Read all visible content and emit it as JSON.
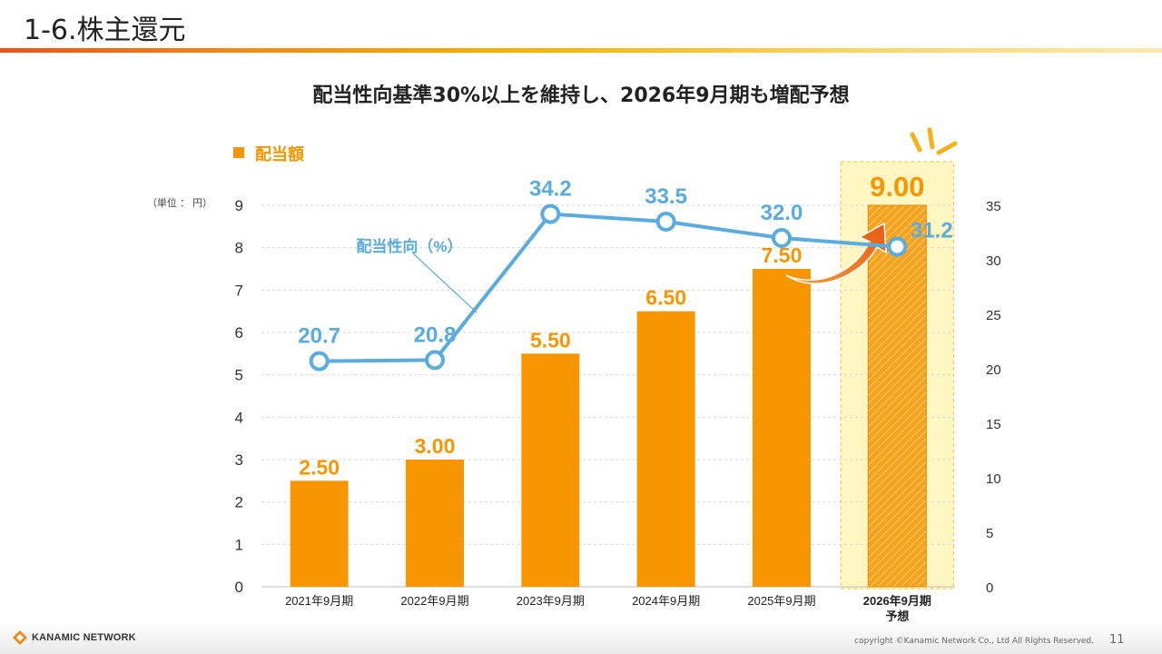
{
  "slide": {
    "title": "1-6.株主還元",
    "headline": "配当性向基準30%以上を維持し、2026年9月期も増配予想"
  },
  "footer": {
    "logo_text": "KANAMIC NETWORK",
    "copyright": "copyright ©Kanamic Network Co., Ltd All Rights Reserved.",
    "page_number": "11"
  },
  "colors": {
    "bar": "#f79600",
    "line": "#5aabde",
    "highlight_fill": "#fff6c2",
    "highlight_border": "#f2cf55",
    "arrow": "#ef6b1a"
  },
  "chart_data": {
    "type": "bar",
    "legend": "配当額",
    "unit_label": "（単位 ： 円）",
    "categories": [
      "2021年9月期",
      "2022年9月期",
      "2023年9月期",
      "2024年9月期",
      "2025年9月期",
      "2026年9月期"
    ],
    "forecast_sublabel": "予想",
    "forecast_index": 5,
    "series": [
      {
        "name": "配当額",
        "axis": "left",
        "values": [
          2.5,
          3.0,
          5.5,
          6.5,
          7.5,
          9.0
        ],
        "labels": [
          "2.50",
          "3.00",
          "5.50",
          "6.50",
          "7.50",
          "9.00"
        ]
      },
      {
        "name": "配当性向（%）",
        "axis": "right",
        "type": "line",
        "values": [
          20.7,
          20.8,
          34.2,
          33.5,
          32.0,
          31.2
        ],
        "labels": [
          "20.7",
          "20.8",
          "34.2",
          "33.5",
          "32.0",
          "31.2"
        ]
      }
    ],
    "ylim": [
      0,
      9
    ],
    "yticks": [
      0,
      1,
      2,
      3,
      4,
      5,
      6,
      7,
      8,
      9
    ],
    "y2lim": [
      0,
      35
    ],
    "y2ticks": [
      0,
      5,
      10,
      15,
      20,
      25,
      30,
      35
    ],
    "grid": true
  }
}
